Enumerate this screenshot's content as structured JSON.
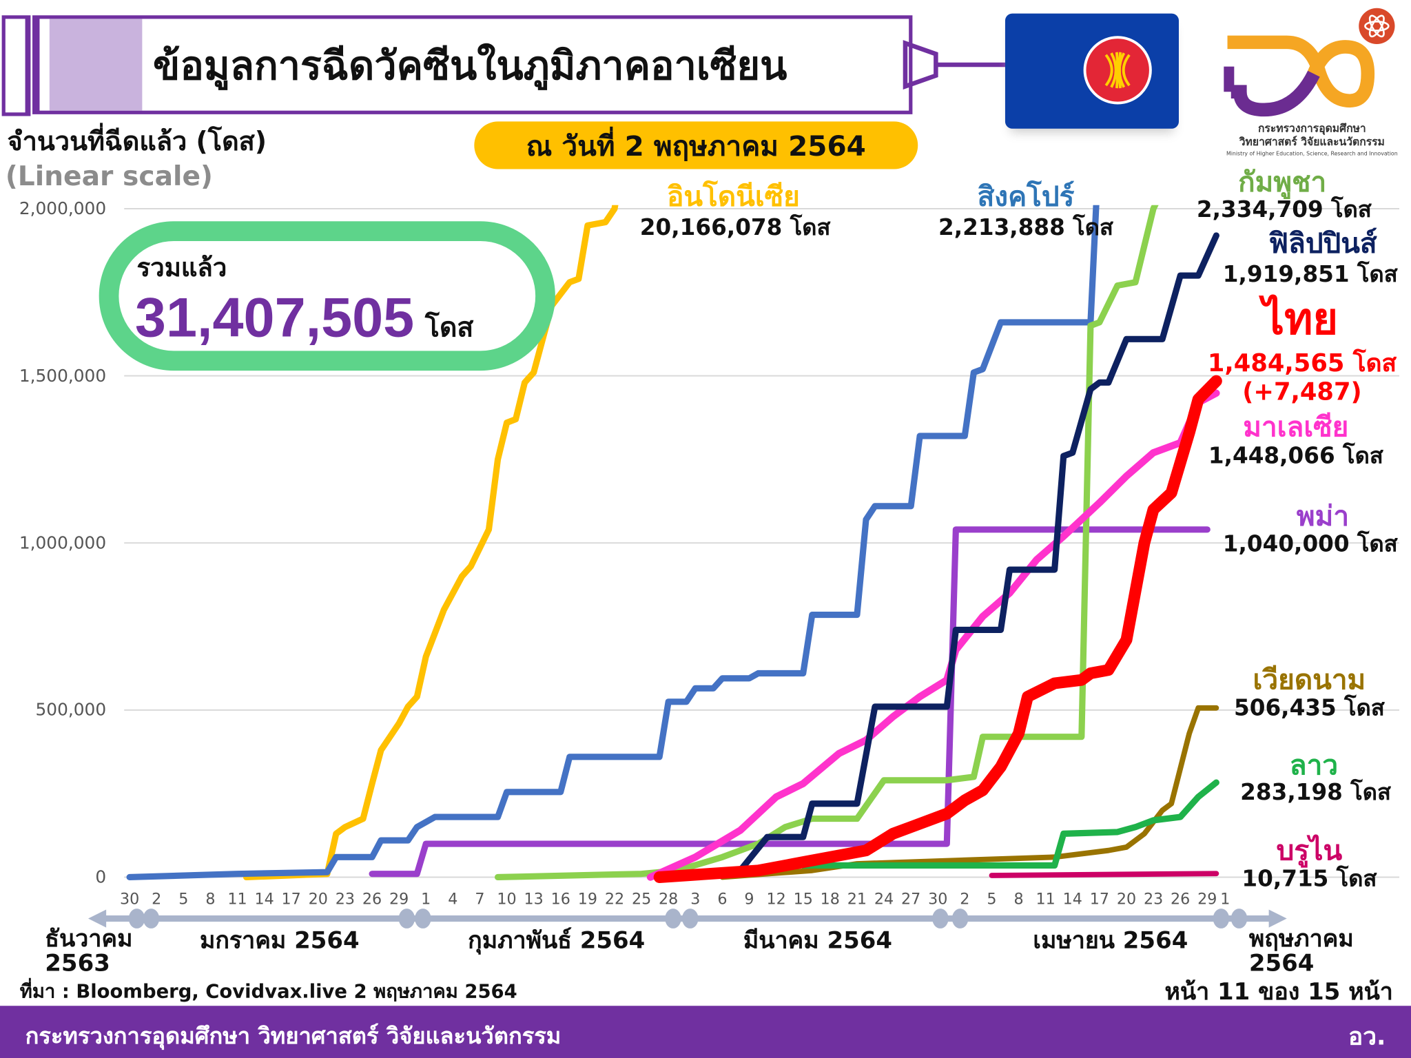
{
  "header": {
    "title": "ข้อมูลการฉีดวัคซีนในภูมิภาคอาเซียน",
    "date": "ณ วันที่ 2 พฤษภาคม 2564",
    "logo_line1": "กระทรวงการอุดมศึกษา",
    "logo_line2": "วิทยาศาสตร์ วิจัยและนวัตกรรม",
    "logo_line3": "Ministry of Higher Education, Science, Research and Innovation"
  },
  "total": {
    "label": "รวมแล้ว",
    "value": "31,407,505",
    "unit": "โดส"
  },
  "colors": {
    "brand_purple": "#7030A0",
    "accent_yellow": "#FFC000",
    "total_border": "#5DD48A"
  },
  "chart_data": {
    "type": "line",
    "ylabel": "จำนวนที่ฉีดแล้ว (โดส)",
    "yscale_note": "(Linear scale)",
    "ylim": [
      0,
      2000000
    ],
    "yticks": [
      "2,000,000",
      "1,500,000",
      "1,000,000",
      "500,000",
      "0"
    ],
    "ytick_values": [
      2000000,
      1500000,
      1000000,
      500000,
      0
    ],
    "grid": true,
    "xlim": [
      "2020-12-30",
      "2021-05-01"
    ],
    "xticks": [
      {
        "date": "2020-12-30",
        "label": "30"
      },
      {
        "date": "2021-01-02",
        "label": "2"
      },
      {
        "date": "2021-01-05",
        "label": "5"
      },
      {
        "date": "2021-01-08",
        "label": "8"
      },
      {
        "date": "2021-01-11",
        "label": "11"
      },
      {
        "date": "2021-01-14",
        "label": "14"
      },
      {
        "date": "2021-01-17",
        "label": "17"
      },
      {
        "date": "2021-01-20",
        "label": "20"
      },
      {
        "date": "2021-01-23",
        "label": "23"
      },
      {
        "date": "2021-01-26",
        "label": "26"
      },
      {
        "date": "2021-01-29",
        "label": "29"
      },
      {
        "date": "2021-02-01",
        "label": "1"
      },
      {
        "date": "2021-02-04",
        "label": "4"
      },
      {
        "date": "2021-02-07",
        "label": "7"
      },
      {
        "date": "2021-02-10",
        "label": "10"
      },
      {
        "date": "2021-02-13",
        "label": "13"
      },
      {
        "date": "2021-02-16",
        "label": "16"
      },
      {
        "date": "2021-02-19",
        "label": "19"
      },
      {
        "date": "2021-02-22",
        "label": "22"
      },
      {
        "date": "2021-02-25",
        "label": "25"
      },
      {
        "date": "2021-02-28",
        "label": "28"
      },
      {
        "date": "2021-03-03",
        "label": "3"
      },
      {
        "date": "2021-03-06",
        "label": "6"
      },
      {
        "date": "2021-03-09",
        "label": "9"
      },
      {
        "date": "2021-03-12",
        "label": "12"
      },
      {
        "date": "2021-03-15",
        "label": "15"
      },
      {
        "date": "2021-03-18",
        "label": "18"
      },
      {
        "date": "2021-03-21",
        "label": "21"
      },
      {
        "date": "2021-03-24",
        "label": "24"
      },
      {
        "date": "2021-03-27",
        "label": "27"
      },
      {
        "date": "2021-03-30",
        "label": "30"
      },
      {
        "date": "2021-04-02",
        "label": "2"
      },
      {
        "date": "2021-04-05",
        "label": "5"
      },
      {
        "date": "2021-04-08",
        "label": "8"
      },
      {
        "date": "2021-04-11",
        "label": "11"
      },
      {
        "date": "2021-04-14",
        "label": "14"
      },
      {
        "date": "2021-04-17",
        "label": "17"
      },
      {
        "date": "2021-04-20",
        "label": "20"
      },
      {
        "date": "2021-04-23",
        "label": "23"
      },
      {
        "date": "2021-04-26",
        "label": "26"
      },
      {
        "date": "2021-04-29",
        "label": "29"
      },
      {
        "date": "2021-05-01",
        "label": "1"
      }
    ],
    "months": [
      {
        "label_line1": "ธันวาคม",
        "label_line2": "2563"
      },
      {
        "label_line1": "มกราคม 2564",
        "label_line2": ""
      },
      {
        "label_line1": "กุมภาพันธ์ 2564",
        "label_line2": ""
      },
      {
        "label_line1": "มีนาคม 2564",
        "label_line2": ""
      },
      {
        "label_line1": "เมษายน 2564",
        "label_line2": ""
      },
      {
        "label_line1": "พฤษภาคม",
        "label_line2": "2564"
      }
    ],
    "series": [
      {
        "name": "อินโดนีเซีย",
        "label": "20,166,078 โดส",
        "color": "#FFC000",
        "width": 7,
        "points": [
          [
            "2021-01-12",
            0
          ],
          [
            "2021-01-21",
            10000
          ],
          [
            "2021-01-22",
            130000
          ],
          [
            "2021-01-23",
            150000
          ],
          [
            "2021-01-25",
            175000
          ],
          [
            "2021-01-26",
            280000
          ],
          [
            "2021-01-27",
            380000
          ],
          [
            "2021-01-29",
            460000
          ],
          [
            "2021-01-30",
            510000
          ],
          [
            "2021-01-31",
            540000
          ],
          [
            "2021-02-01",
            660000
          ],
          [
            "2021-02-03",
            800000
          ],
          [
            "2021-02-05",
            900000
          ],
          [
            "2021-02-06",
            930000
          ],
          [
            "2021-02-08",
            1040000
          ],
          [
            "2021-02-09",
            1250000
          ],
          [
            "2021-02-10",
            1360000
          ],
          [
            "2021-02-11",
            1370000
          ],
          [
            "2021-02-12",
            1480000
          ],
          [
            "2021-02-13",
            1510000
          ],
          [
            "2021-02-15",
            1710000
          ],
          [
            "2021-02-17",
            1780000
          ],
          [
            "2021-02-18",
            1790000
          ],
          [
            "2021-02-19",
            1950000
          ],
          [
            "2021-02-21",
            1960000
          ],
          [
            "2021-02-22",
            2000000
          ],
          [
            "2021-02-24",
            2300000
          ]
        ]
      },
      {
        "name": "สิงคโปร์",
        "label": "2,213,888 โดส",
        "color": "#4472C4",
        "width": 7,
        "points": [
          [
            "2020-12-30",
            0
          ],
          [
            "2021-01-11",
            10000
          ],
          [
            "2021-01-21",
            15000
          ],
          [
            "2021-01-22",
            60000
          ],
          [
            "2021-01-26",
            60000
          ],
          [
            "2021-01-27",
            110000
          ],
          [
            "2021-01-30",
            110000
          ],
          [
            "2021-01-31",
            150000
          ],
          [
            "2021-02-02",
            180000
          ],
          [
            "2021-02-09",
            180000
          ],
          [
            "2021-02-10",
            255000
          ],
          [
            "2021-02-16",
            255000
          ],
          [
            "2021-02-17",
            360000
          ],
          [
            "2021-02-27",
            360000
          ],
          [
            "2021-02-28",
            525000
          ],
          [
            "2021-03-02",
            525000
          ],
          [
            "2021-03-03",
            565000
          ],
          [
            "2021-03-05",
            565000
          ],
          [
            "2021-03-06",
            595000
          ],
          [
            "2021-03-09",
            595000
          ],
          [
            "2021-03-10",
            610000
          ],
          [
            "2021-03-15",
            610000
          ],
          [
            "2021-03-16",
            785000
          ],
          [
            "2021-03-21",
            785000
          ],
          [
            "2021-03-22",
            1070000
          ],
          [
            "2021-03-23",
            1110000
          ],
          [
            "2021-03-27",
            1110000
          ],
          [
            "2021-03-28",
            1320000
          ],
          [
            "2021-04-02",
            1320000
          ],
          [
            "2021-04-03",
            1510000
          ],
          [
            "2021-04-04",
            1520000
          ],
          [
            "2021-04-06",
            1660000
          ],
          [
            "2021-04-16",
            1660000
          ],
          [
            "2021-04-17",
            2213888
          ]
        ]
      },
      {
        "name": "พม่า",
        "label": "1,040,000 โดส",
        "color": "#9A3FCB",
        "width": 7,
        "points": [
          [
            "2021-01-26",
            10000
          ],
          [
            "2021-01-31",
            10000
          ],
          [
            "2021-02-01",
            100000
          ],
          [
            "2021-03-31",
            100000
          ],
          [
            "2021-04-01",
            1040000
          ],
          [
            "2021-04-29",
            1040000
          ]
        ]
      },
      {
        "name": "กัมพูชา",
        "label": "2,334,709 โดส",
        "color": "#8CD14E",
        "width": 7,
        "points": [
          [
            "2021-02-09",
            0
          ],
          [
            "2021-02-25",
            10000
          ],
          [
            "2021-03-01",
            20000
          ],
          [
            "2021-03-06",
            60000
          ],
          [
            "2021-03-10",
            100000
          ],
          [
            "2021-03-13",
            150000
          ],
          [
            "2021-03-16",
            175000
          ],
          [
            "2021-03-21",
            175000
          ],
          [
            "2021-03-24",
            290000
          ],
          [
            "2021-03-31",
            290000
          ],
          [
            "2021-04-03",
            300000
          ],
          [
            "2021-04-04",
            420000
          ],
          [
            "2021-04-15",
            420000
          ],
          [
            "2021-04-16",
            1650000
          ],
          [
            "2021-04-17",
            1660000
          ],
          [
            "2021-04-19",
            1770000
          ],
          [
            "2021-04-21",
            1780000
          ],
          [
            "2021-04-23",
            2000000
          ],
          [
            "2021-04-29",
            2334709
          ]
        ]
      },
      {
        "name": "เวียดนาม",
        "label": "506,435 โดส",
        "color": "#997300",
        "width": 6,
        "points": [
          [
            "2021-03-06",
            0
          ],
          [
            "2021-03-16",
            20000
          ],
          [
            "2021-03-21",
            40000
          ],
          [
            "2021-04-01",
            50000
          ],
          [
            "2021-04-12",
            60000
          ],
          [
            "2021-04-18",
            80000
          ],
          [
            "2021-04-20",
            90000
          ],
          [
            "2021-04-22",
            130000
          ],
          [
            "2021-04-24",
            200000
          ],
          [
            "2021-04-25",
            220000
          ],
          [
            "2021-04-27",
            430000
          ],
          [
            "2021-04-28",
            506435
          ],
          [
            "2021-04-30",
            506435
          ]
        ]
      },
      {
        "name": "ลาว",
        "label": "283,198 โดส",
        "color": "#1FB24A",
        "width": 7,
        "points": [
          [
            "2021-03-15",
            35000
          ],
          [
            "2021-04-12",
            35000
          ],
          [
            "2021-04-13",
            130000
          ],
          [
            "2021-04-19",
            135000
          ],
          [
            "2021-04-21",
            150000
          ],
          [
            "2021-04-23",
            170000
          ],
          [
            "2021-04-26",
            180000
          ],
          [
            "2021-04-28",
            240000
          ],
          [
            "2021-04-30",
            283198
          ]
        ]
      },
      {
        "name": "บรูไน",
        "label": "10,715 โดส",
        "color": "#CC0066",
        "width": 6,
        "points": [
          [
            "2021-04-05",
            5000
          ],
          [
            "2021-04-26",
            10000
          ],
          [
            "2021-04-30",
            10715
          ]
        ]
      },
      {
        "name": "มาเลเซีย",
        "label": "1,448,066 โดส",
        "color": "#FF33CC",
        "width": 8,
        "points": [
          [
            "2021-02-26",
            0
          ],
          [
            "2021-03-03",
            60000
          ],
          [
            "2021-03-08",
            140000
          ],
          [
            "2021-03-12",
            240000
          ],
          [
            "2021-03-15",
            280000
          ],
          [
            "2021-03-19",
            370000
          ],
          [
            "2021-03-22",
            410000
          ],
          [
            "2021-03-25",
            480000
          ],
          [
            "2021-03-28",
            540000
          ],
          [
            "2021-03-31",
            590000
          ],
          [
            "2021-04-01",
            680000
          ],
          [
            "2021-04-04",
            780000
          ],
          [
            "2021-04-07",
            850000
          ],
          [
            "2021-04-10",
            950000
          ],
          [
            "2021-04-13",
            1020000
          ],
          [
            "2021-04-17",
            1120000
          ],
          [
            "2021-04-20",
            1200000
          ],
          [
            "2021-04-23",
            1270000
          ],
          [
            "2021-04-26",
            1300000
          ],
          [
            "2021-04-28",
            1420000
          ],
          [
            "2021-04-30",
            1448066
          ]
        ]
      },
      {
        "name": "ฟิลิปปินส์",
        "label": "1,919,851 โดส",
        "color": "#0D2160",
        "width": 7,
        "points": [
          [
            "2021-03-01",
            0
          ],
          [
            "2021-03-08",
            20000
          ],
          [
            "2021-03-11",
            120000
          ],
          [
            "2021-03-15",
            120000
          ],
          [
            "2021-03-16",
            220000
          ],
          [
            "2021-03-21",
            220000
          ],
          [
            "2021-03-23",
            510000
          ],
          [
            "2021-03-31",
            510000
          ],
          [
            "2021-04-01",
            740000
          ],
          [
            "2021-04-06",
            740000
          ],
          [
            "2021-04-07",
            920000
          ],
          [
            "2021-04-12",
            920000
          ],
          [
            "2021-04-13",
            1260000
          ],
          [
            "2021-04-14",
            1270000
          ],
          [
            "2021-04-16",
            1460000
          ],
          [
            "2021-04-17",
            1480000
          ],
          [
            "2021-04-18",
            1480000
          ],
          [
            "2021-04-20",
            1610000
          ],
          [
            "2021-04-24",
            1610000
          ],
          [
            "2021-04-26",
            1800000
          ],
          [
            "2021-04-28",
            1800000
          ],
          [
            "2021-04-30",
            1919851
          ]
        ]
      },
      {
        "name": "ไทย",
        "label": "1,484,565 โดส",
        "delta": "(+7,487)",
        "color": "#FF0000",
        "width": 13,
        "points": [
          [
            "2021-02-27",
            0
          ],
          [
            "2021-03-10",
            20000
          ],
          [
            "2021-03-15",
            45000
          ],
          [
            "2021-03-22",
            80000
          ],
          [
            "2021-03-25",
            130000
          ],
          [
            "2021-03-27",
            150000
          ],
          [
            "2021-03-31",
            190000
          ],
          [
            "2021-04-02",
            230000
          ],
          [
            "2021-04-04",
            260000
          ],
          [
            "2021-04-06",
            330000
          ],
          [
            "2021-04-08",
            430000
          ],
          [
            "2021-04-09",
            540000
          ],
          [
            "2021-04-12",
            580000
          ],
          [
            "2021-04-15",
            590000
          ],
          [
            "2021-04-16",
            610000
          ],
          [
            "2021-04-18",
            620000
          ],
          [
            "2021-04-20",
            710000
          ],
          [
            "2021-04-22",
            1000000
          ],
          [
            "2021-04-23",
            1100000
          ],
          [
            "2021-04-25",
            1150000
          ],
          [
            "2021-04-27",
            1330000
          ],
          [
            "2021-04-28",
            1430000
          ],
          [
            "2021-04-30",
            1484565
          ]
        ]
      }
    ]
  },
  "footer": {
    "source": "ที่มา : Bloomberg, Covidvax.live 2 พฤษภาคม 2564",
    "page": "หน้า 11 ของ 15 หน้า",
    "ministry": "กระทรวงการอุดมศึกษา วิทยาศาสตร์ วิจัยและนวัตกรรม",
    "abbr": "อว."
  }
}
